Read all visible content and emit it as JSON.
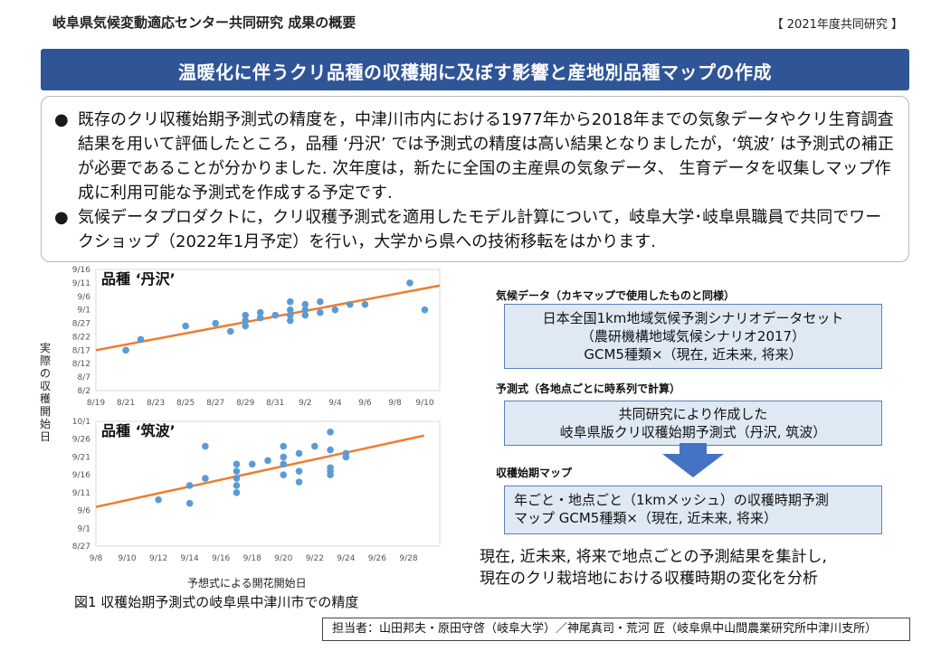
{
  "header": {
    "title": "岐阜県気候変動適応センター共同研究  成果の概要",
    "badge": "【 2021年度共同研究 】"
  },
  "banner": {
    "title": "温暖化に伴うクリ品種の収穫期に及ぼす影響と産地別品種マップの作成"
  },
  "summary": {
    "bullet_symbol": "●",
    "items": [
      "既存のクリ収穫始期予測式の精度を，中津川市内における1977年から2018年までの気象データやクリ生育調査結果を用いて評価したところ，品種 ‘丹沢’ では予測式の精度は高い結果となりましたが，‘筑波’ は予測式の補正が必要であることが分かりました. 次年度は，新たに全国の主産県の気象データ、 生育データを収集しマップ作成に利用可能な予測式を作成する予定です.",
      "気候データプロダクトに，クリ収穫予測式を適用したモデル計算について，岐阜大学･岐阜県職員で共同でワークショップ（2022年1月予定）を行い，大学から県への技術移転をはかります."
    ]
  },
  "figure": {
    "y_axis_label": "実際の収穫開始日",
    "x_axis_label": "予想式による開花開始日",
    "caption": "図1  収穫始期予測式の岐阜県中津川市での精度",
    "colors": {
      "point": "#5b9bd5",
      "trend": "#ed7d31"
    }
  },
  "chart_data": [
    {
      "type": "scatter",
      "title": "品種 ‘丹沢’",
      "x_ticks": [
        "8/19",
        "8/21",
        "8/23",
        "8/25",
        "8/27",
        "8/29",
        "8/31",
        "9/2",
        "9/4",
        "9/6",
        "9/8",
        "9/10"
      ],
      "y_ticks": [
        "9/16",
        "9/11",
        "9/6",
        "9/1",
        "8/27",
        "8/22",
        "8/17",
        "8/12",
        "8/7",
        "8/2"
      ],
      "xlim": [
        "8/19",
        "9/11"
      ],
      "ylim": [
        "8/2",
        "9/16"
      ],
      "points": [
        [
          "8/21",
          "8/17"
        ],
        [
          "8/22",
          "8/21"
        ],
        [
          "8/25",
          "8/26"
        ],
        [
          "8/27",
          "8/27"
        ],
        [
          "8/28",
          "8/24"
        ],
        [
          "8/29",
          "8/30"
        ],
        [
          "8/29",
          "8/28"
        ],
        [
          "8/29",
          "8/26"
        ],
        [
          "8/30",
          "8/31"
        ],
        [
          "8/30",
          "8/29"
        ],
        [
          "8/31",
          "8/30"
        ],
        [
          "9/1",
          "9/4"
        ],
        [
          "9/1",
          "9/1"
        ],
        [
          "9/1",
          "8/30"
        ],
        [
          "9/1",
          "8/28"
        ],
        [
          "9/2",
          "9/3"
        ],
        [
          "9/2",
          "9/1"
        ],
        [
          "9/2",
          "8/30"
        ],
        [
          "9/3",
          "9/4"
        ],
        [
          "9/3",
          "8/31"
        ],
        [
          "9/4",
          "9/1"
        ],
        [
          "9/5",
          "9/3"
        ],
        [
          "9/6",
          "9/3"
        ],
        [
          "9/9",
          "9/11"
        ],
        [
          "9/10",
          "9/1"
        ]
      ],
      "trendline": [
        [
          "8/19",
          "8/17"
        ],
        [
          "9/11",
          "9/10"
        ]
      ]
    },
    {
      "type": "scatter",
      "title": "品種 ‘筑波’",
      "x_ticks": [
        "9/8",
        "9/10",
        "9/12",
        "9/14",
        "9/16",
        "9/18",
        "9/20",
        "9/22",
        "9/24",
        "9/26",
        "9/28"
      ],
      "y_ticks": [
        "10/1",
        "9/26",
        "9/21",
        "9/16",
        "9/11",
        "9/6",
        "9/1",
        "8/27"
      ],
      "xlim": [
        "9/8",
        "9/30"
      ],
      "ylim": [
        "8/27",
        "10/1"
      ],
      "points": [
        [
          "9/12",
          "9/9"
        ],
        [
          "9/14",
          "9/13"
        ],
        [
          "9/14",
          "9/8"
        ],
        [
          "9/15",
          "9/24"
        ],
        [
          "9/15",
          "9/15"
        ],
        [
          "9/17",
          "9/19"
        ],
        [
          "9/17",
          "9/17"
        ],
        [
          "9/17",
          "9/15"
        ],
        [
          "9/17",
          "9/13"
        ],
        [
          "9/17",
          "9/11"
        ],
        [
          "9/18",
          "9/19"
        ],
        [
          "9/19",
          "9/20"
        ],
        [
          "9/20",
          "9/24"
        ],
        [
          "9/20",
          "9/21"
        ],
        [
          "9/20",
          "9/19"
        ],
        [
          "9/20",
          "9/16"
        ],
        [
          "9/21",
          "9/22"
        ],
        [
          "9/21",
          "9/17"
        ],
        [
          "9/21",
          "9/14"
        ],
        [
          "9/22",
          "9/24"
        ],
        [
          "9/23",
          "9/28"
        ],
        [
          "9/23",
          "9/23"
        ],
        [
          "9/23",
          "9/18"
        ],
        [
          "9/23",
          "9/17"
        ],
        [
          "9/23",
          "9/16"
        ],
        [
          "9/24",
          "9/22"
        ],
        [
          "9/24",
          "9/21"
        ]
      ],
      "trendline": [
        [
          "9/8",
          "9/7"
        ],
        [
          "9/29",
          "9/27"
        ]
      ]
    }
  ],
  "flow": {
    "climate_label": "気候データ（カキマップで使用したものと同様）",
    "climate_box": [
      "日本全国1km地域気候予測シナリオデータセット",
      "（農研機構地域気候シナリオ2017）",
      "GCM5種類×（現在, 近未来, 将来）"
    ],
    "formula_label": "予測式（各地点ごとに時系列で計算）",
    "formula_box": [
      "共同研究により作成した",
      "岐阜県版クリ収穫始期予測式（丹沢, 筑波）"
    ],
    "map_label": "収穫始期マップ",
    "map_box": [
      "年ごと・地点ごと（1kmメッシュ）の収穫時期予測",
      "マップ     GCM5種類×（現在, 近未来, 将来）"
    ],
    "result": [
      "現在, 近未来, 将来で地点ごとの予測結果を集計し,",
      "現在のクリ栽培地における収穫時期の変化を分析"
    ]
  },
  "contact": "担当者：山田邦夫・原田守啓（岐阜大学）／神尾真司・荒河 匠（岐阜県中山間農業研究所中津川支所）"
}
